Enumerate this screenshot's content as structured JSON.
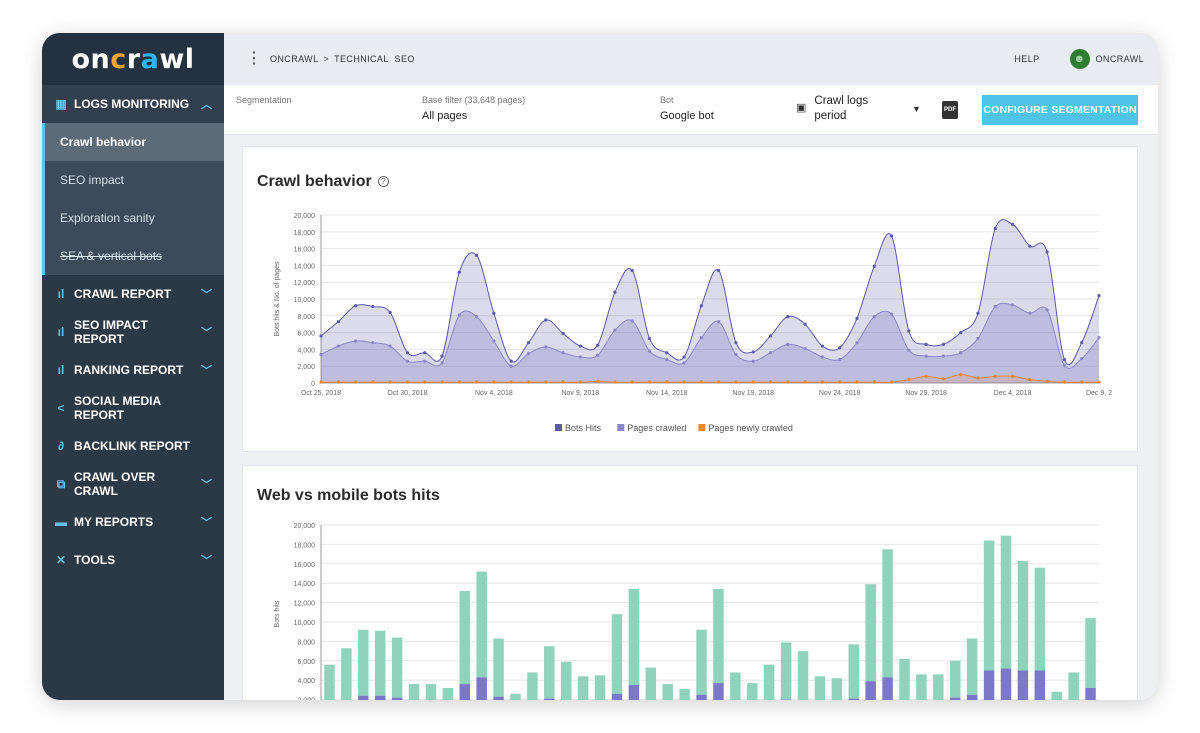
{
  "app": {
    "logo_text": "oncrawl"
  },
  "topbar": {
    "crumb_1": "ONCRAWL",
    "crumb_sep": ">",
    "crumb_2": "TECHNICAL",
    "crumb_3": "SEO",
    "help": "HELP",
    "user": "ONCRAWL"
  },
  "sidebar": {
    "logs_monitoring": "LOGS MONITORING",
    "subitems": [
      "Crawl behavior",
      "SEO impact",
      "Exploration sanity",
      "SEA & vertical bots"
    ],
    "items": [
      "CRAWL REPORT",
      "SEO IMPACT REPORT",
      "RANKING REPORT",
      "SOCIAL MEDIA REPORT",
      "BACKLINK REPORT",
      "CRAWL OVER CRAWL",
      "MY REPORTS",
      "TOOLS"
    ]
  },
  "filters": {
    "segmentation_label": "Segmentation",
    "base_filter_label": "Base filter (33,648 pages)",
    "base_filter_value": "All pages",
    "bot_label": "Bot",
    "bot_value": "Google bot",
    "period_line1": "Crawl logs",
    "period_line2": "period",
    "pdf_label": "PDF",
    "configure_button": "CONFIGURE SEGMENTATION"
  },
  "colors": {
    "bots_hits": "#5c5aa8",
    "pages_crawled": "#8b87c9",
    "pages_new": "#f0892a",
    "mobile": "#7b79c7",
    "web": "#8fd3bd",
    "accent": "#4fc3e8"
  },
  "chart_data": [
    {
      "type": "area",
      "title": "Crawl behavior",
      "ylabel": "Bots hits & No. of pages",
      "ylim": [
        0,
        20000
      ],
      "yticks": [
        0,
        2000,
        4000,
        6000,
        8000,
        10000,
        12000,
        14000,
        16000,
        18000,
        20000
      ],
      "x_tick_labels": [
        "Oct 25, 2018",
        "Oct 30, 2018",
        "Nov 4, 2018",
        "Nov 9, 2018",
        "Nov 14, 2018",
        "Nov 19, 2018",
        "Nov 24, 2018",
        "Nov 29, 2018",
        "Dec 4, 2018",
        "Dec 9, 2"
      ],
      "series": [
        {
          "name": "Bots Hits",
          "values": [
            5600,
            7300,
            9200,
            9100,
            8400,
            3600,
            3600,
            3200,
            13200,
            15200,
            8300,
            2600,
            4800,
            7500,
            5900,
            4400,
            4500,
            10800,
            13400,
            5300,
            3600,
            3100,
            9200,
            13400,
            4800,
            3700,
            5600,
            7900,
            7000,
            4400,
            4200,
            7700,
            13900,
            17500,
            6200,
            4600,
            4600,
            6000,
            8300,
            18400,
            18900,
            16300,
            15600,
            2800,
            4800,
            10400
          ]
        },
        {
          "name": "Pages crawled",
          "values": [
            3400,
            4400,
            5000,
            4800,
            4400,
            2600,
            2600,
            2400,
            8100,
            7900,
            5000,
            2000,
            3500,
            4300,
            3600,
            3100,
            3300,
            6300,
            7400,
            3800,
            2800,
            2400,
            5400,
            7300,
            3400,
            2600,
            3600,
            4600,
            4100,
            3100,
            2800,
            4800,
            7900,
            8200,
            3900,
            3200,
            3200,
            3600,
            5300,
            9100,
            9300,
            8300,
            8700,
            2100,
            2900,
            5400
          ]
        },
        {
          "name": "Pages newly crawled",
          "values": [
            100,
            100,
            100,
            100,
            100,
            100,
            100,
            100,
            100,
            100,
            100,
            100,
            100,
            100,
            100,
            100,
            200,
            100,
            100,
            100,
            100,
            100,
            100,
            100,
            100,
            100,
            100,
            100,
            100,
            100,
            100,
            100,
            100,
            100,
            400,
            800,
            500,
            1000,
            600,
            800,
            800,
            400,
            200,
            100,
            100,
            100
          ]
        }
      ],
      "legend": "bottom-center",
      "grid": true
    },
    {
      "type": "bar",
      "title": "Web vs mobile bots hits",
      "ylabel": "Bots hits",
      "ylim": [
        0,
        20000
      ],
      "yticks": [
        2000,
        4000,
        6000,
        8000,
        10000,
        12000,
        14000,
        16000,
        18000,
        20000
      ],
      "stacked": true,
      "series": [
        {
          "values": [
            1800,
            1900,
            2400,
            2400,
            2200,
            1100,
            1200,
            1100,
            3600,
            4300,
            2300,
            500,
            1300,
            2100,
            1500,
            900,
            1100,
            2600,
            3500,
            1500,
            600,
            900,
            2500,
            3700,
            1300,
            1100,
            1600,
            2000,
            1800,
            700,
            900,
            2100,
            3900,
            4300,
            1400,
            1400,
            1300,
            2200,
            2500,
            5000,
            5200,
            5000,
            5000,
            700,
            1500,
            3200
          ]
        },
        {
          "values": [
            3800,
            5400,
            6800,
            6700,
            6200,
            2500,
            2400,
            2100,
            9600,
            10900,
            6000,
            2100,
            3500,
            5400,
            4400,
            3500,
            3400,
            8200,
            9900,
            3800,
            3000,
            2200,
            6700,
            9700,
            3500,
            2600,
            4000,
            5900,
            5200,
            3700,
            3300,
            5600,
            10000,
            13200,
            4800,
            3200,
            3300,
            3800,
            5800,
            13400,
            13700,
            11300,
            10600,
            2100,
            3300,
            7200
          ]
        }
      ],
      "grid": true
    }
  ]
}
